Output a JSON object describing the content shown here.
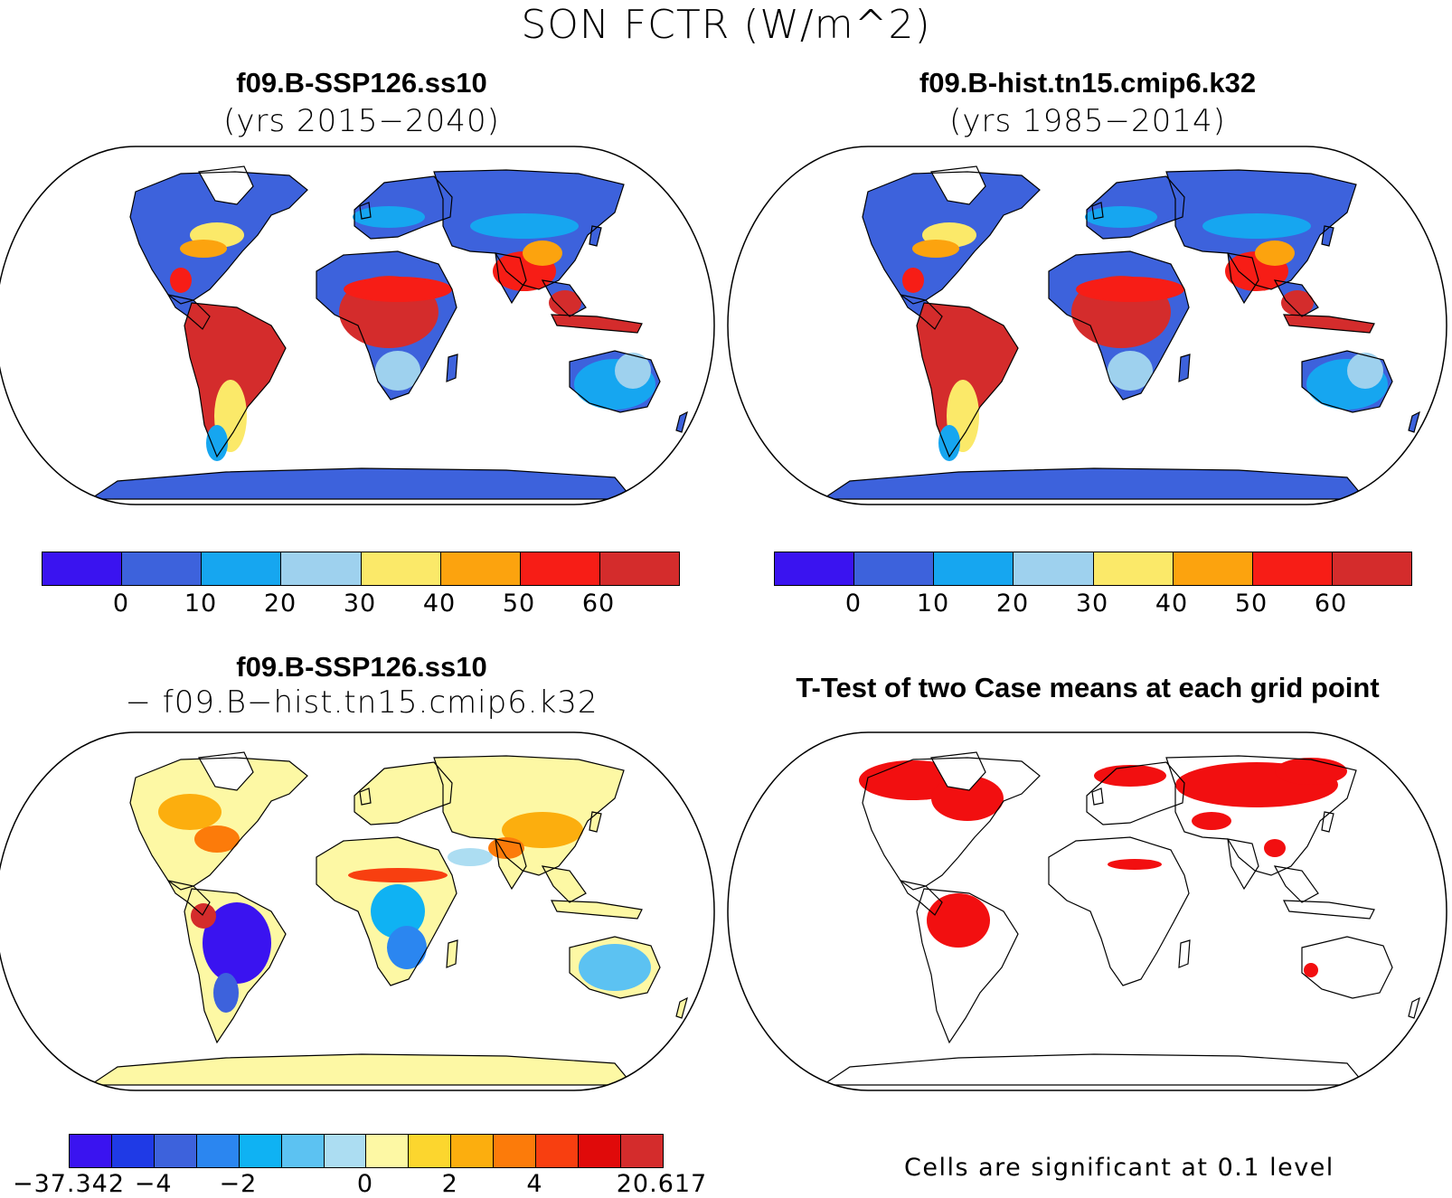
{
  "title": "SON FCTR (W/m^2)",
  "panels": [
    {
      "name": "f09.B-SSP126.ss10",
      "subtitle": "(yrs 2015−2040)"
    },
    {
      "name": "f09.B-hist.tn15.cmip6.k32",
      "subtitle": "(yrs 1985−2014)"
    },
    {
      "name": "f09.B-SSP126.ss10",
      "subtitle": "− f09.B−hist.tn15.cmip6.k32"
    },
    {
      "name": "T-Test of two Case means at each grid point",
      "subtitle": ""
    }
  ],
  "colorbar_abs": {
    "colors": [
      "#3a13f0",
      "#3d62dc",
      "#16a6f0",
      "#9ed1ee",
      "#fbe969",
      "#fca30e",
      "#f71d16",
      "#d42c2c"
    ],
    "ticks": [
      "0",
      "10",
      "20",
      "30",
      "40",
      "50",
      "60"
    ]
  },
  "colorbar_diff": {
    "colors": [
      "#3a13f0",
      "#1f3ae6",
      "#3d62dc",
      "#2b86f0",
      "#0fb2f3",
      "#5cc2f2",
      "#acddf2",
      "#fdf8a4",
      "#fcd62e",
      "#fcae0e",
      "#fc7b0a",
      "#f83f10",
      "#e00a0a",
      "#d42c2c"
    ],
    "ticks": [
      "−37.342",
      "−4",
      "−2",
      "0",
      "2",
      "4",
      "20.617"
    ]
  },
  "significance_note": "Cells are significant at 0.1 level",
  "map_colors": {
    "ocean": "#ffffff",
    "significant": "#f20f10",
    "diff_background": "#fdf8a4"
  }
}
